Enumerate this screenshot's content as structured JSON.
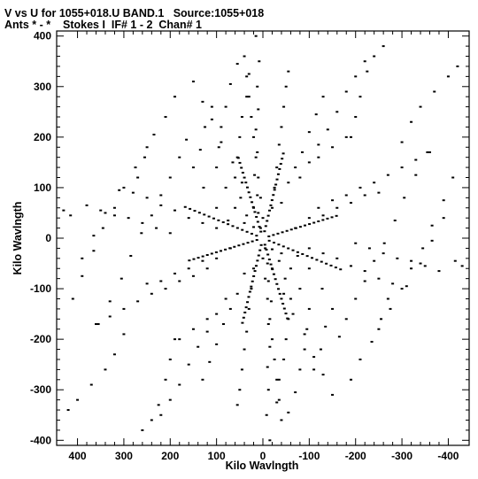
{
  "header": {
    "title_line1": "V vs U for 1055+018.U BAND.1   Source:1055+018",
    "title_line2": "Ants * - *    Stokes I  IF# 1 - 2  Chan# 1"
  },
  "colors": {
    "foreground": "#000000",
    "background": "#ffffff"
  },
  "chart_data": {
    "type": "scatter",
    "title": "V vs U for 1055+018.U BAND.1   Source:1055+018",
    "subtitle": "Ants * - *    Stokes I  IF# 1 - 2  Chan# 1",
    "xlabel": "Kilo Wavlngth",
    "ylabel": "Kilo Wavlngth",
    "xlim": [
      445,
      -445
    ],
    "ylim": [
      -410,
      410
    ],
    "x_reversed": true,
    "xticks": [
      400,
      300,
      200,
      100,
      0,
      -100,
      -200,
      -300,
      -400
    ],
    "xtick_labels": [
      "400",
      "300",
      "200",
      "100",
      "0",
      "-100",
      "-200",
      "-300",
      "-400"
    ],
    "yticks": [
      400,
      300,
      200,
      100,
      0,
      -100,
      -200,
      -300,
      -400
    ],
    "ytick_labels": [
      "400",
      "300",
      "200",
      "100",
      "0",
      "-100",
      "-200",
      "-300",
      "-400"
    ],
    "grid": false,
    "legend": "none",
    "series": [
      {
        "description": "uv coverage samples (points and conjugate points, symmetric about origin)",
        "points": [
          [
            -15,
            -400
          ],
          [
            -8,
            -350
          ],
          [
            -12,
            -300
          ],
          [
            -10,
            -255
          ],
          [
            -15,
            -215
          ],
          [
            -12,
            -170
          ],
          [
            -18,
            -125
          ],
          [
            -12,
            -85
          ],
          [
            -10,
            -50
          ],
          [
            -5,
            -20
          ],
          [
            -30,
            -325
          ],
          [
            -35,
            -280
          ],
          [
            -45,
            -240
          ],
          [
            -50,
            -200
          ],
          [
            -55,
            -160
          ],
          [
            -60,
            -120
          ],
          [
            -48,
            -80
          ],
          [
            -35,
            -45
          ],
          [
            -20,
            -22
          ],
          [
            -55,
            -345
          ],
          [
            -70,
            -305
          ],
          [
            -80,
            -260
          ],
          [
            -90,
            -220
          ],
          [
            -95,
            -180
          ],
          [
            -100,
            -140
          ],
          [
            -80,
            -100
          ],
          [
            -60,
            -60
          ],
          [
            -40,
            -30
          ],
          [
            -110,
            -260
          ],
          [
            -125,
            -220
          ],
          [
            -135,
            -175
          ],
          [
            -150,
            -140
          ],
          [
            -128,
            -100
          ],
          [
            -100,
            -60
          ],
          [
            -75,
            -35
          ],
          [
            -190,
            -280
          ],
          [
            -210,
            -240
          ],
          [
            -235,
            -205
          ],
          [
            -255,
            -160
          ],
          [
            -270,
            -120
          ],
          [
            -165,
            -195
          ],
          [
            -180,
            -160
          ],
          [
            -200,
            -120
          ],
          [
            -220,
            -85
          ],
          [
            -240,
            -45
          ],
          [
            -262,
            -10
          ],
          [
            -285,
            35
          ],
          [
            -305,
            80
          ],
          [
            -330,
            125
          ],
          [
            -355,
            170
          ],
          [
            -250,
            -180
          ],
          [
            -275,
            -140
          ],
          [
            -300,
            -100
          ],
          [
            -320,
            -60
          ],
          [
            -345,
            -20
          ],
          [
            -365,
            25
          ],
          [
            -390,
            75
          ],
          [
            -410,
            120
          ],
          [
            -310,
            -95
          ],
          [
            -340,
            -50
          ],
          [
            -365,
            -5
          ],
          [
            -390,
            40
          ],
          [
            -415,
            -45
          ],
          [
            -430,
            -55
          ],
          [
            -100,
            -20
          ],
          [
            -130,
            -30
          ],
          [
            -160,
            -40
          ],
          [
            -190,
            -55
          ],
          [
            -220,
            -65
          ],
          [
            -250,
            -80
          ],
          [
            -280,
            -90
          ],
          [
            -120,
            60
          ],
          [
            -150,
            75
          ],
          [
            -180,
            85
          ],
          [
            -210,
            100
          ],
          [
            -240,
            110
          ],
          [
            -270,
            125
          ],
          [
            -300,
            140
          ],
          [
            -330,
            155
          ],
          [
            -360,
            170
          ],
          [
            -190,
            200
          ],
          [
            -200,
            240
          ],
          [
            -210,
            280
          ],
          [
            -225,
            330
          ],
          [
            -240,
            360
          ],
          [
            -260,
            380
          ],
          [
            -120,
            160
          ],
          [
            -150,
            180
          ],
          [
            -180,
            200
          ],
          [
            -80,
            120
          ],
          [
            -100,
            150
          ],
          [
            -120,
            185
          ],
          [
            -140,
            215
          ],
          [
            -160,
            250
          ],
          [
            -180,
            290
          ],
          [
            -200,
            320
          ],
          [
            -220,
            350
          ],
          [
            -40,
            70
          ],
          [
            -55,
            110
          ],
          [
            -70,
            140
          ],
          [
            -85,
            170
          ],
          [
            -100,
            210
          ],
          [
            -115,
            245
          ],
          [
            -130,
            280
          ],
          [
            -20,
            60
          ],
          [
            -25,
            100
          ],
          [
            -30,
            140
          ],
          [
            -35,
            185
          ],
          [
            -40,
            220
          ],
          [
            -45,
            260
          ],
          [
            -50,
            300
          ],
          [
            -55,
            330
          ],
          [
            0,
            40
          ],
          [
            5,
            80
          ],
          [
            10,
            120
          ],
          [
            15,
            160
          ],
          [
            20,
            200
          ],
          [
            25,
            240
          ],
          [
            30,
            280
          ],
          [
            35,
            320
          ],
          [
            40,
            360
          ],
          [
            -70,
            20
          ],
          [
            -100,
            40
          ],
          [
            -130,
            45
          ],
          [
            -160,
            60
          ],
          [
            -190,
            70
          ],
          [
            -220,
            85
          ],
          [
            -250,
            90
          ],
          [
            -20,
            -60
          ],
          [
            -45,
            -110
          ],
          [
            -65,
            -150
          ],
          [
            -90,
            -190
          ],
          [
            -110,
            -235
          ],
          [
            -130,
            -270
          ],
          [
            -150,
            -310
          ],
          [
            -200,
            -10
          ],
          [
            -230,
            -20
          ],
          [
            -260,
            -30
          ],
          [
            -290,
            -40
          ],
          [
            -320,
            -45
          ],
          [
            -350,
            -55
          ],
          [
            -380,
            -65
          ],
          [
            -300,
            190
          ],
          [
            -320,
            230
          ],
          [
            -340,
            260
          ],
          [
            -370,
            290
          ],
          [
            -400,
            320
          ],
          [
            -420,
            340
          ]
        ]
      }
    ]
  }
}
